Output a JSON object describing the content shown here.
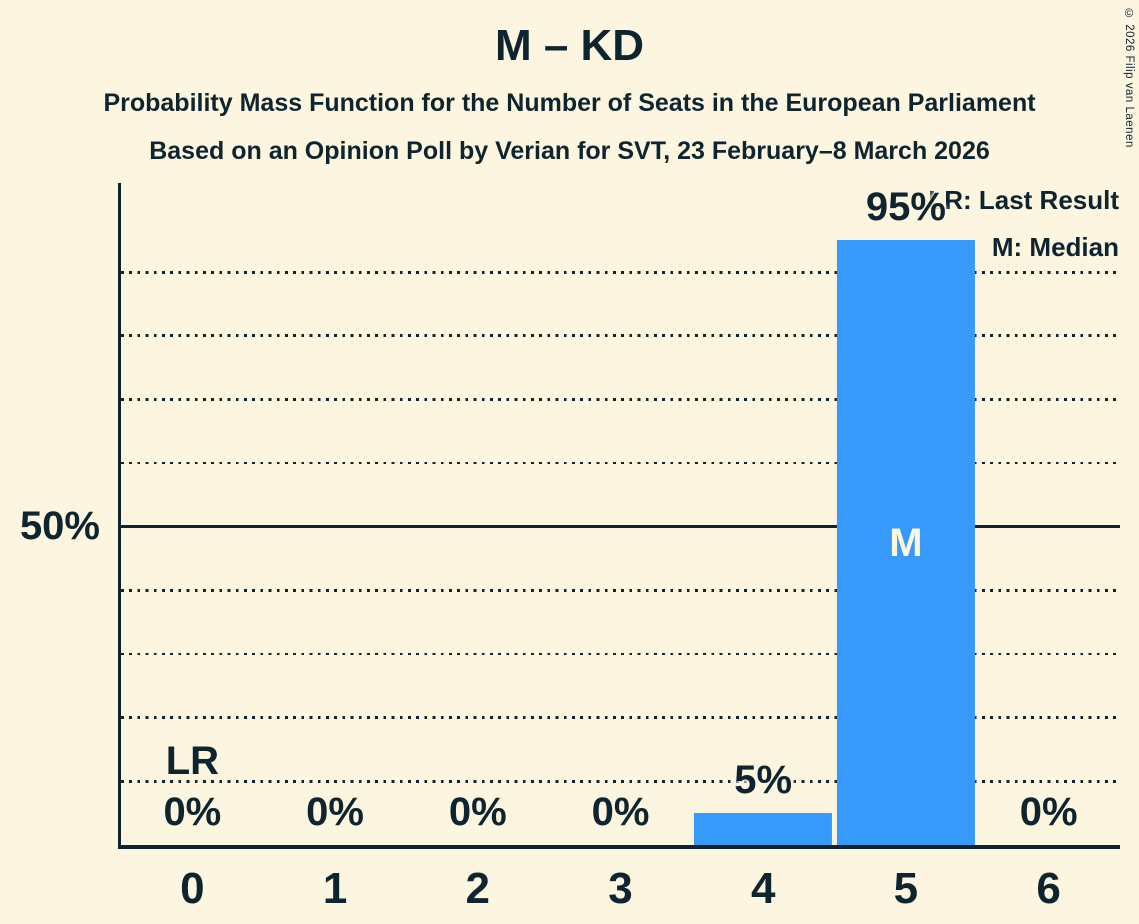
{
  "title": "M – KD",
  "subtitle": {
    "line1": "Probability Mass Function for the Number of Seats in the European Parliament",
    "line2": "Based on an Opinion Poll by Verian for SVT, 23 February–8 March 2026"
  },
  "copyright": "© 2026 Filip van Laenen",
  "legend": {
    "lr_label": "LR: Last Result",
    "m_label": "M: Median"
  },
  "y_axis_label": "50%",
  "colors": {
    "background": "#FCF5DF",
    "ink": "#0E2530",
    "bar": "#3799FA"
  },
  "chart_data": {
    "type": "bar",
    "title": "M – KD",
    "categories": [
      "0",
      "1",
      "2",
      "3",
      "4",
      "5",
      "6"
    ],
    "values": [
      0,
      0,
      0,
      0,
      5,
      95,
      0
    ],
    "bar_labels": [
      "0%",
      "0%",
      "0%",
      "0%",
      "5%",
      "95%",
      "0%"
    ],
    "ylim": [
      0,
      104
    ],
    "y_gridlines_dotted_pct": [
      10,
      20,
      30,
      40,
      60,
      70,
      80,
      90
    ],
    "y_gridline_solid_pct": 50,
    "median": {
      "category": "5",
      "label": "M"
    },
    "last_result": {
      "category": "0",
      "label": "LR"
    },
    "legend_position": "top-right",
    "grid": "horizontal-dotted"
  }
}
